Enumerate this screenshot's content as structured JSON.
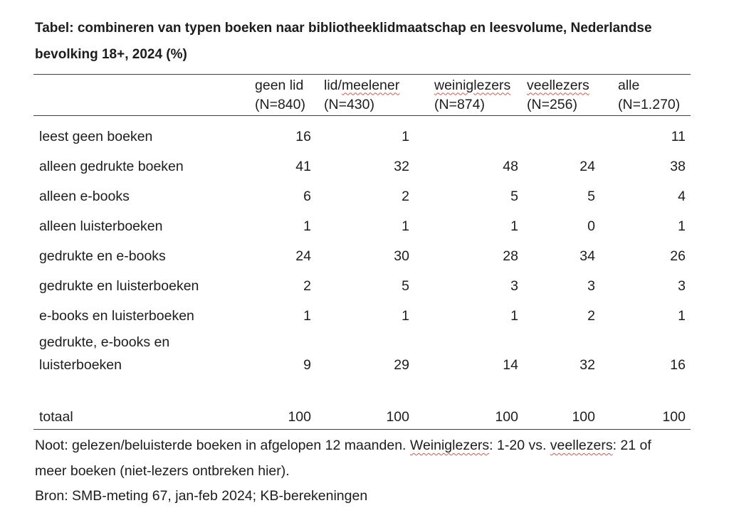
{
  "page": {
    "background": "#ffffff",
    "text_color": "#1d1d1d",
    "rule_color": "#3f3f3f",
    "squiggle_color": "#cd5a52"
  },
  "title": {
    "line1": "Tabel: combineren van typen boeken naar bibliotheeklidmaatschap en leesvolume, Nederlandse",
    "line2": "bevolking 18+, 2024 (%)"
  },
  "table": {
    "columns": [
      {
        "label_segments": [
          {
            "text": "geen lid"
          }
        ],
        "n": "(N=840)"
      },
      {
        "label_segments": [
          {
            "text": "lid/"
          },
          {
            "text": "meelener",
            "underline": true
          }
        ],
        "n": "(N=430)"
      },
      {
        "label_segments": [
          {
            "text": "weiniglezers",
            "underline": true
          }
        ],
        "n": "(N=874)"
      },
      {
        "label_segments": [
          {
            "text": "veellezers",
            "underline": true
          }
        ],
        "n": "(N=256)"
      },
      {
        "label_segments": [
          {
            "text": "alle"
          }
        ],
        "n": "(N=1.270)"
      }
    ],
    "rows": [
      {
        "label_lines": [
          "leest geen boeken"
        ],
        "values": [
          "16",
          "1",
          "",
          "",
          "11"
        ]
      },
      {
        "label_lines": [
          "alleen gedrukte boeken"
        ],
        "values": [
          "41",
          "32",
          "48",
          "24",
          "38"
        ]
      },
      {
        "label_lines": [
          "alleen e-books"
        ],
        "values": [
          "6",
          "2",
          "5",
          "5",
          "4"
        ]
      },
      {
        "label_lines": [
          "alleen luisterboeken"
        ],
        "values": [
          "1",
          "1",
          "1",
          "0",
          "1"
        ]
      },
      {
        "label_lines": [
          "gedrukte en e-books"
        ],
        "values": [
          "24",
          "30",
          "28",
          "34",
          "26"
        ]
      },
      {
        "label_lines": [
          "gedrukte en luisterboeken"
        ],
        "values": [
          "2",
          "5",
          "3",
          "3",
          "3"
        ]
      },
      {
        "label_lines": [
          "e-books en luisterboeken"
        ],
        "values": [
          "1",
          "1",
          "1",
          "2",
          "1"
        ]
      },
      {
        "label_lines": [
          "gedrukte, e-books en",
          "luisterboeken"
        ],
        "values": [
          "9",
          "29",
          "14",
          "32",
          "16"
        ]
      }
    ],
    "total_row": {
      "label": "totaal",
      "values": [
        "100",
        "100",
        "100",
        "100",
        "100"
      ]
    }
  },
  "note": {
    "line1_segments": [
      {
        "text": "Noot: gelezen/beluisterde boeken in afgelopen 12 maanden. "
      },
      {
        "text": "Weiniglezers",
        "underline": true
      },
      {
        "text": ": 1-20 vs. "
      },
      {
        "text": "veellezers",
        "underline": true
      },
      {
        "text": ": 21 of"
      }
    ],
    "line2_segments": [
      {
        "text": "meer boeken (niet-lezers ontbreken hier)."
      }
    ]
  },
  "source": "Bron: SMB-meting 67, jan-feb 2024; KB-berekeningen",
  "chart_data": {
    "type": "table",
    "title": "Tabel: combineren van typen boeken naar bibliotheeklidmaatschap en leesvolume, Nederlandse bevolking 18+, 2024 (%)",
    "columns": [
      "geen lid (N=840)",
      "lid/meelener (N=430)",
      "weiniglezers (N=874)",
      "veellezers (N=256)",
      "alle (N=1.270)"
    ],
    "row_labels": [
      "leest geen boeken",
      "alleen gedrukte boeken",
      "alleen e-books",
      "alleen luisterboeken",
      "gedrukte en e-books",
      "gedrukte en luisterboeken",
      "e-books en luisterboeken",
      "gedrukte, e-books en luisterboeken",
      "totaal"
    ],
    "values": [
      [
        16,
        1,
        null,
        null,
        11
      ],
      [
        41,
        32,
        48,
        24,
        38
      ],
      [
        6,
        2,
        5,
        5,
        4
      ],
      [
        1,
        1,
        1,
        0,
        1
      ],
      [
        24,
        30,
        28,
        34,
        26
      ],
      [
        2,
        5,
        3,
        3,
        3
      ],
      [
        1,
        1,
        1,
        2,
        1
      ],
      [
        9,
        29,
        14,
        32,
        16
      ],
      [
        100,
        100,
        100,
        100,
        100
      ]
    ],
    "unit": "percent",
    "note": "Noot: gelezen/beluisterde boeken in afgelopen 12 maanden. Weiniglezers: 1-20 vs. veellezers: 21 of meer boeken (niet-lezers ontbreken hier).",
    "source": "Bron: SMB-meting 67, jan-feb 2024; KB-berekeningen"
  }
}
